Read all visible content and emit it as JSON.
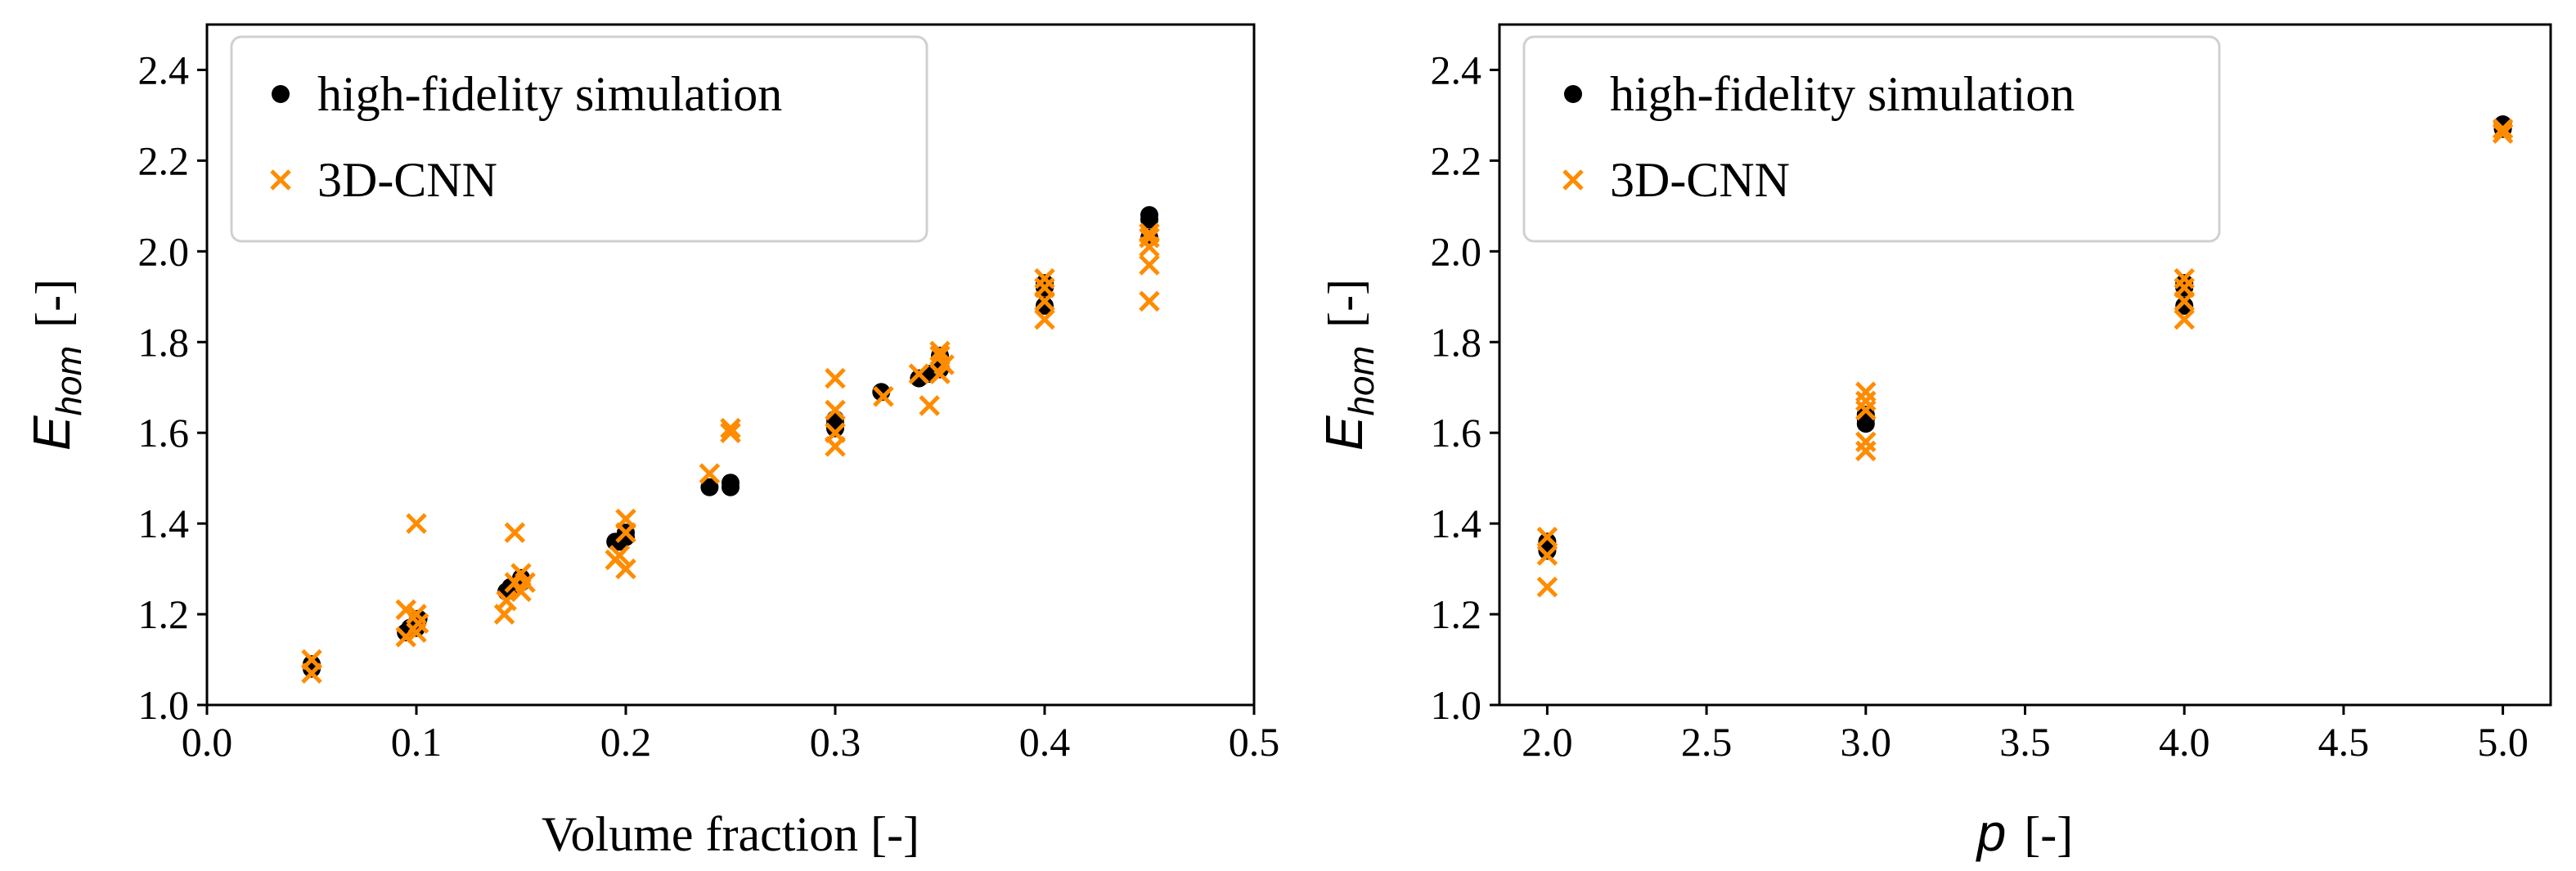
{
  "colors": {
    "hf": "#000000",
    "cnn": "#ff8c00",
    "axis": "#000000",
    "legend_border": "#d0d0d0"
  },
  "chart_data": [
    {
      "type": "scatter",
      "xlabel": "Volume fraction [-]",
      "ylabel_main": "E",
      "ylabel_sub": "hom",
      "ylabel_unit": "[-]",
      "xlim": [
        0.0,
        0.5
      ],
      "ylim": [
        1.0,
        2.5
      ],
      "xticks": [
        0.0,
        0.1,
        0.2,
        0.3,
        0.4,
        0.5
      ],
      "xtick_labels": [
        "0.0",
        "0.1",
        "0.2",
        "0.3",
        "0.4",
        "0.5"
      ],
      "yticks": [
        1.0,
        1.2,
        1.4,
        1.6,
        1.8,
        2.0,
        2.2,
        2.4
      ],
      "ytick_labels": [
        "1.0",
        "1.2",
        "1.4",
        "1.6",
        "1.8",
        "2.0",
        "2.2",
        "2.4"
      ],
      "legend": {
        "position": "top-left",
        "entries": [
          "high-fidelity simulation",
          "3D-CNN"
        ]
      },
      "series": [
        {
          "name": "high-fidelity simulation",
          "marker": "circle",
          "x": [
            0.05,
            0.05,
            0.095,
            0.097,
            0.1,
            0.1,
            0.101,
            0.143,
            0.145,
            0.147,
            0.15,
            0.15,
            0.195,
            0.197,
            0.2,
            0.2,
            0.24,
            0.25,
            0.25,
            0.3,
            0.3,
            0.3,
            0.322,
            0.34,
            0.345,
            0.35,
            0.35,
            0.35,
            0.4,
            0.4,
            0.4,
            0.45,
            0.45,
            0.45
          ],
          "y": [
            1.08,
            1.09,
            1.16,
            1.17,
            1.17,
            1.18,
            1.19,
            1.25,
            1.26,
            1.26,
            1.27,
            1.28,
            1.36,
            1.36,
            1.37,
            1.38,
            1.48,
            1.48,
            1.49,
            1.61,
            1.62,
            1.63,
            1.69,
            1.72,
            1.73,
            1.74,
            1.75,
            1.77,
            1.88,
            1.92,
            1.93,
            2.03,
            2.07,
            2.08
          ]
        },
        {
          "name": "3D-CNN",
          "marker": "x",
          "x": [
            0.05,
            0.05,
            0.095,
            0.095,
            0.1,
            0.1,
            0.1,
            0.101,
            0.142,
            0.143,
            0.147,
            0.147,
            0.15,
            0.15,
            0.152,
            0.195,
            0.197,
            0.2,
            0.2,
            0.2,
            0.24,
            0.25,
            0.25,
            0.3,
            0.3,
            0.3,
            0.3,
            0.323,
            0.34,
            0.345,
            0.35,
            0.35,
            0.35,
            0.352,
            0.4,
            0.4,
            0.4,
            0.4,
            0.45,
            0.45,
            0.45,
            0.45,
            0.45
          ],
          "y": [
            1.07,
            1.1,
            1.15,
            1.21,
            1.16,
            1.2,
            1.4,
            1.18,
            1.2,
            1.23,
            1.27,
            1.38,
            1.25,
            1.29,
            1.27,
            1.32,
            1.33,
            1.3,
            1.38,
            1.41,
            1.51,
            1.6,
            1.61,
            1.57,
            1.6,
            1.65,
            1.72,
            1.68,
            1.73,
            1.66,
            1.73,
            1.77,
            1.78,
            1.75,
            1.85,
            1.89,
            1.92,
            1.94,
            1.89,
            1.97,
            2.01,
            2.03,
            2.04
          ]
        }
      ]
    },
    {
      "type": "scatter",
      "xlabel_main": "p",
      "xlabel_unit": "[-]",
      "ylabel_main": "E",
      "ylabel_sub": "hom",
      "ylabel_unit": "[-]",
      "xlim": [
        1.85,
        5.15
      ],
      "ylim": [
        1.0,
        2.5
      ],
      "xticks": [
        2.0,
        2.5,
        3.0,
        3.5,
        4.0,
        4.5,
        5.0
      ],
      "xtick_labels": [
        "2.0",
        "2.5",
        "3.0",
        "3.5",
        "4.0",
        "4.5",
        "5.0"
      ],
      "yticks": [
        1.0,
        1.2,
        1.4,
        1.6,
        1.8,
        2.0,
        2.2,
        2.4
      ],
      "ytick_labels": [
        "1.0",
        "1.2",
        "1.4",
        "1.6",
        "1.8",
        "2.0",
        "2.2",
        "2.4"
      ],
      "legend": {
        "position": "top-left",
        "entries": [
          "high-fidelity simulation",
          "3D-CNN"
        ]
      },
      "series": [
        {
          "name": "high-fidelity simulation",
          "marker": "circle",
          "x": [
            2.0,
            2.0,
            2.0,
            3.0,
            3.0,
            3.0,
            4.0,
            4.0,
            4.0,
            5.0,
            5.0
          ],
          "y": [
            1.34,
            1.35,
            1.36,
            1.62,
            1.63,
            1.64,
            1.88,
            1.92,
            1.93,
            2.27,
            2.28
          ]
        },
        {
          "name": "3D-CNN",
          "marker": "x",
          "x": [
            2.0,
            2.0,
            2.0,
            3.0,
            3.0,
            3.0,
            3.0,
            3.0,
            4.0,
            4.0,
            4.0,
            4.0,
            5.0,
            5.0
          ],
          "y": [
            1.26,
            1.33,
            1.37,
            1.56,
            1.58,
            1.65,
            1.67,
            1.69,
            1.85,
            1.89,
            1.92,
            1.94,
            2.26,
            2.27
          ]
        }
      ]
    }
  ]
}
